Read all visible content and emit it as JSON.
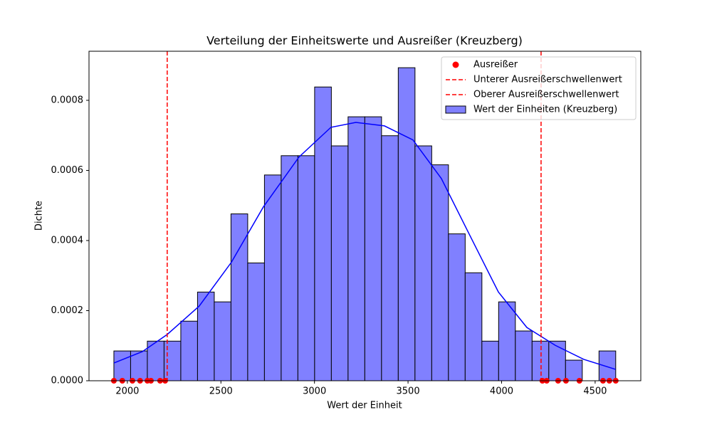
{
  "chart_data": {
    "type": "histogram",
    "title": "Verteilung der Einheitswerte und Ausreißer (Kreuzberg)",
    "xlabel": "Wert der Einheit",
    "ylabel": "Dichte",
    "name": "Wert der Einheiten (Kreuzberg)",
    "color": "#8080ff",
    "edgecolor": "#000000",
    "bins": [
      1928,
      2017.4,
      2106.8,
      2196.2,
      2285.6,
      2375,
      2464.4,
      2553.8,
      2643.2,
      2732.6,
      2822,
      2911.4,
      3000.8,
      3090.2,
      3179.6,
      3269,
      3358.4,
      3447.8,
      3537.2,
      3626.6,
      3716,
      3805.4,
      3894.8,
      3984.2,
      4073.6,
      4163,
      4252.4,
      4341.8,
      4431.2,
      4520.6,
      4610
    ],
    "values": [
      8.5e-05,
      8.5e-05,
      0.000113,
      0.000113,
      0.00017,
      0.000253,
      0.000225,
      0.000476,
      0.000336,
      0.000587,
      0.000642,
      0.000642,
      0.000838,
      0.00067,
      0.000753,
      0.000753,
      0.000699,
      0.000893,
      0.00067,
      0.000616,
      0.000419,
      0.000308,
      0.000113,
      0.000225,
      0.000142,
      0.000113,
      0.000113,
      5.87e-05,
      0,
      8.5e-05
    ],
    "kde": {
      "color": "#0000ff",
      "x": [
        1928,
        2080,
        2213,
        2384,
        2556,
        2727,
        2917,
        3088,
        3221,
        3374,
        3526,
        3678,
        3830,
        3983,
        4135,
        4287,
        4439,
        4610
      ],
      "values": [
        5.06e-05,
        8.3e-05,
        0.000132,
        0.000213,
        0.000338,
        0.000496,
        0.000638,
        0.000723,
        0.000737,
        0.000727,
        0.000687,
        0.000577,
        0.000415,
        0.000253,
        0.000152,
        0.000101,
        6.1e-05,
        3.24e-05
      ]
    },
    "outliers": {
      "name": "Ausreißer",
      "color": "#ff0000",
      "x": [
        1928,
        1973,
        2027,
        2068,
        2107,
        2126,
        2175,
        2202,
        4218,
        4241,
        4302,
        4344,
        4416,
        4542,
        4576,
        4610
      ],
      "values": [
        0,
        0,
        0,
        0,
        0,
        0,
        0,
        0,
        0,
        0,
        0,
        0,
        0,
        0,
        0,
        0
      ]
    },
    "thresholds": [
      {
        "name": "Unterer Ausreißerschwellenwert",
        "color": "#ff0000",
        "value": 2213
      },
      {
        "name": "Oberer Ausreißerschwellenwert",
        "color": "#ff0000",
        "value": 4211
      }
    ],
    "xlim": [
      1795,
      4744
    ],
    "ylim": [
      0,
      0.00094
    ],
    "xticks": [
      2000,
      2500,
      3000,
      3500,
      4000,
      4500
    ],
    "yticks": [
      {
        "value": 0,
        "label": "0.0000"
      },
      {
        "value": 0.0002,
        "label": "0.0002"
      },
      {
        "value": 0.0004,
        "label": "0.0004"
      },
      {
        "value": 0.0006,
        "label": "0.0006"
      },
      {
        "value": 0.0008,
        "label": "0.0008"
      }
    ],
    "legend": "upper right"
  }
}
